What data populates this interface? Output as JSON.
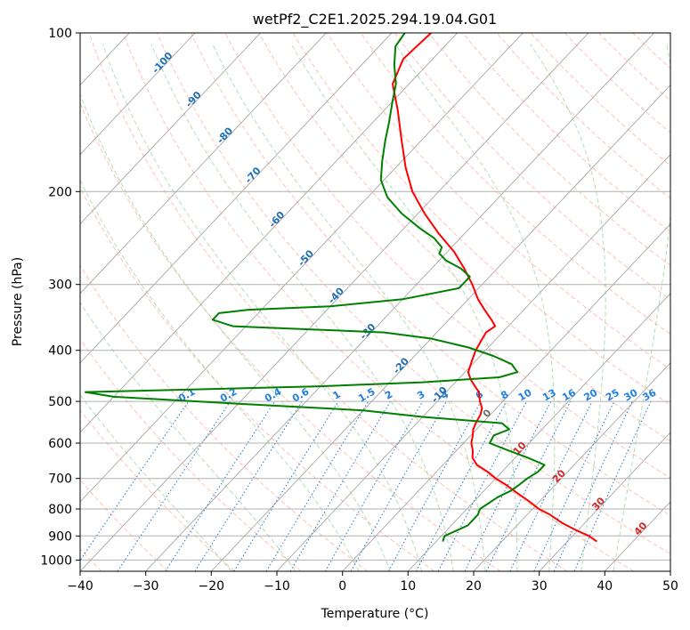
{
  "chart_data": {
    "type": "line",
    "title": "wetPf2_C2E1.2025.294.19.04.G01",
    "xlabel": "Temperature (°C)",
    "ylabel": "Pressure (hPa)",
    "xlim": [
      -40,
      50
    ],
    "ylim": [
      1050,
      100
    ],
    "xticks": [
      -40,
      -30,
      -20,
      -10,
      0,
      10,
      20,
      30,
      40,
      50
    ],
    "yticks": [
      100,
      200,
      300,
      400,
      500,
      600,
      700,
      800,
      900,
      1000
    ],
    "grid": true,
    "skew_deg_per_decade": 75.9,
    "background_lines": {
      "isotherms_step_c": 10,
      "dry_adiabats_theta_k": [
        -40,
        -30,
        -20,
        -10,
        0,
        10,
        20,
        30,
        40,
        50,
        60,
        70,
        80,
        90,
        100,
        110,
        120,
        130,
        140,
        150,
        160,
        170,
        180,
        190,
        200
      ],
      "moist_adiabats_start_c_at_1000": [
        -20,
        -10,
        0,
        5,
        10,
        15,
        20,
        25,
        30,
        35,
        40
      ],
      "mixing_ratio_gkg": [
        0.1,
        0.2,
        0.4,
        0.6,
        1,
        1.5,
        2,
        3,
        4,
        6,
        8,
        10,
        13,
        16,
        20,
        25,
        30,
        36
      ]
    },
    "mixing_ratio_labels": [
      "0.1",
      "0.2",
      "0.4",
      "0.6",
      "1",
      "1.5",
      "2",
      "3",
      "4",
      "6",
      "8",
      "10",
      "13",
      "16",
      "20",
      "25",
      "30",
      "36"
    ],
    "isotherm_labels": [
      {
        "text": "-100",
        "t": -100,
        "p": 115
      },
      {
        "text": "-90",
        "t": -90,
        "p": 135
      },
      {
        "text": "-80",
        "t": -80,
        "p": 158
      },
      {
        "text": "-70",
        "t": -70,
        "p": 188
      },
      {
        "text": "-60",
        "t": -60,
        "p": 228
      },
      {
        "text": "-50",
        "t": -50,
        "p": 270
      },
      {
        "text": "-40",
        "t": -40,
        "p": 318
      },
      {
        "text": "-30",
        "t": -30,
        "p": 372
      },
      {
        "text": "-20",
        "t": -20,
        "p": 432
      },
      {
        "text": "-10",
        "t": -10,
        "p": 490
      }
    ],
    "hot_labels": [
      {
        "text": "0",
        "t": 0,
        "p": 532,
        "color": "#707070"
      },
      {
        "text": "10",
        "t": 10,
        "p": 620,
        "color": "#d62728"
      },
      {
        "text": "20",
        "t": 20,
        "p": 700,
        "color": "#d62728"
      },
      {
        "text": "30",
        "t": 30,
        "p": 790,
        "color": "#d62728"
      },
      {
        "text": "40",
        "t": 40,
        "p": 880,
        "color": "#d62728"
      }
    ],
    "series": [
      {
        "name": "Temperature",
        "color": "#ff0000",
        "points": [
          [
            922,
            34.5
          ],
          [
            900,
            32.5
          ],
          [
            880,
            30.0
          ],
          [
            850,
            26.5
          ],
          [
            820,
            23.5
          ],
          [
            800,
            21.0
          ],
          [
            770,
            18.0
          ],
          [
            750,
            15.8
          ],
          [
            720,
            12.5
          ],
          [
            700,
            10.0
          ],
          [
            680,
            7.8
          ],
          [
            660,
            5.2
          ],
          [
            640,
            3.5
          ],
          [
            620,
            2.5
          ],
          [
            600,
            1.2
          ],
          [
            580,
            0.3
          ],
          [
            565,
            -0.5
          ],
          [
            550,
            -1.0
          ],
          [
            530,
            -1.5
          ],
          [
            515,
            -2.2
          ],
          [
            500,
            -3.5
          ],
          [
            480,
            -5.0
          ],
          [
            470,
            -6.2
          ],
          [
            455,
            -8.0
          ],
          [
            440,
            -9.5
          ],
          [
            420,
            -10.5
          ],
          [
            400,
            -11.5
          ],
          [
            385,
            -12.0
          ],
          [
            370,
            -12.5
          ],
          [
            360,
            -12.0
          ],
          [
            350,
            -13.5
          ],
          [
            335,
            -16.0
          ],
          [
            320,
            -18.5
          ],
          [
            300,
            -21.5
          ],
          [
            280,
            -25.0
          ],
          [
            260,
            -29.0
          ],
          [
            240,
            -34.0
          ],
          [
            220,
            -39.0
          ],
          [
            200,
            -44.0
          ],
          [
            180,
            -48.5
          ],
          [
            160,
            -53.0
          ],
          [
            140,
            -58.0
          ],
          [
            125,
            -62.5
          ],
          [
            112,
            -64.5
          ],
          [
            100,
            -64.0
          ]
        ]
      },
      {
        "name": "Dewpoint",
        "color": "#008000",
        "points": [
          [
            922,
            11.0
          ],
          [
            900,
            10.5
          ],
          [
            860,
            12.5
          ],
          [
            820,
            12.5
          ],
          [
            800,
            12.0
          ],
          [
            760,
            13.0
          ],
          [
            740,
            14.0
          ],
          [
            720,
            14.5
          ],
          [
            700,
            14.8
          ],
          [
            680,
            15.5
          ],
          [
            660,
            15.5
          ],
          [
            640,
            12.0
          ],
          [
            620,
            8.0
          ],
          [
            600,
            4.0
          ],
          [
            580,
            3.5
          ],
          [
            565,
            5.0
          ],
          [
            550,
            3.0
          ],
          [
            535,
            -10.0
          ],
          [
            520,
            -20.0
          ],
          [
            505,
            -40.0
          ],
          [
            490,
            -60.0
          ],
          [
            480,
            -65.0
          ],
          [
            475,
            -50.0
          ],
          [
            468,
            -30.0
          ],
          [
            460,
            -15.0
          ],
          [
            450,
            -4.0
          ],
          [
            440,
            -2.0
          ],
          [
            425,
            -4.0
          ],
          [
            410,
            -8.0
          ],
          [
            395,
            -13.0
          ],
          [
            380,
            -20.0
          ],
          [
            370,
            -28.0
          ],
          [
            365,
            -40.0
          ],
          [
            360,
            -52.0
          ],
          [
            350,
            -56.0
          ],
          [
            340,
            -56.0
          ],
          [
            335,
            -52.0
          ],
          [
            330,
            -40.0
          ],
          [
            320,
            -30.0
          ],
          [
            305,
            -23.0
          ],
          [
            290,
            -23.0
          ],
          [
            280,
            -25.5
          ],
          [
            270,
            -29.0
          ],
          [
            262,
            -31.0
          ],
          [
            255,
            -31.5
          ],
          [
            245,
            -34.0
          ],
          [
            235,
            -37.5
          ],
          [
            220,
            -42.5
          ],
          [
            205,
            -47.0
          ],
          [
            190,
            -50.5
          ],
          [
            175,
            -53.0
          ],
          [
            160,
            -55.5
          ],
          [
            148,
            -57.5
          ],
          [
            135,
            -60.0
          ],
          [
            125,
            -62.0
          ],
          [
            115,
            -65.0
          ],
          [
            106,
            -67.5
          ],
          [
            100,
            -68.0
          ]
        ]
      }
    ]
  }
}
